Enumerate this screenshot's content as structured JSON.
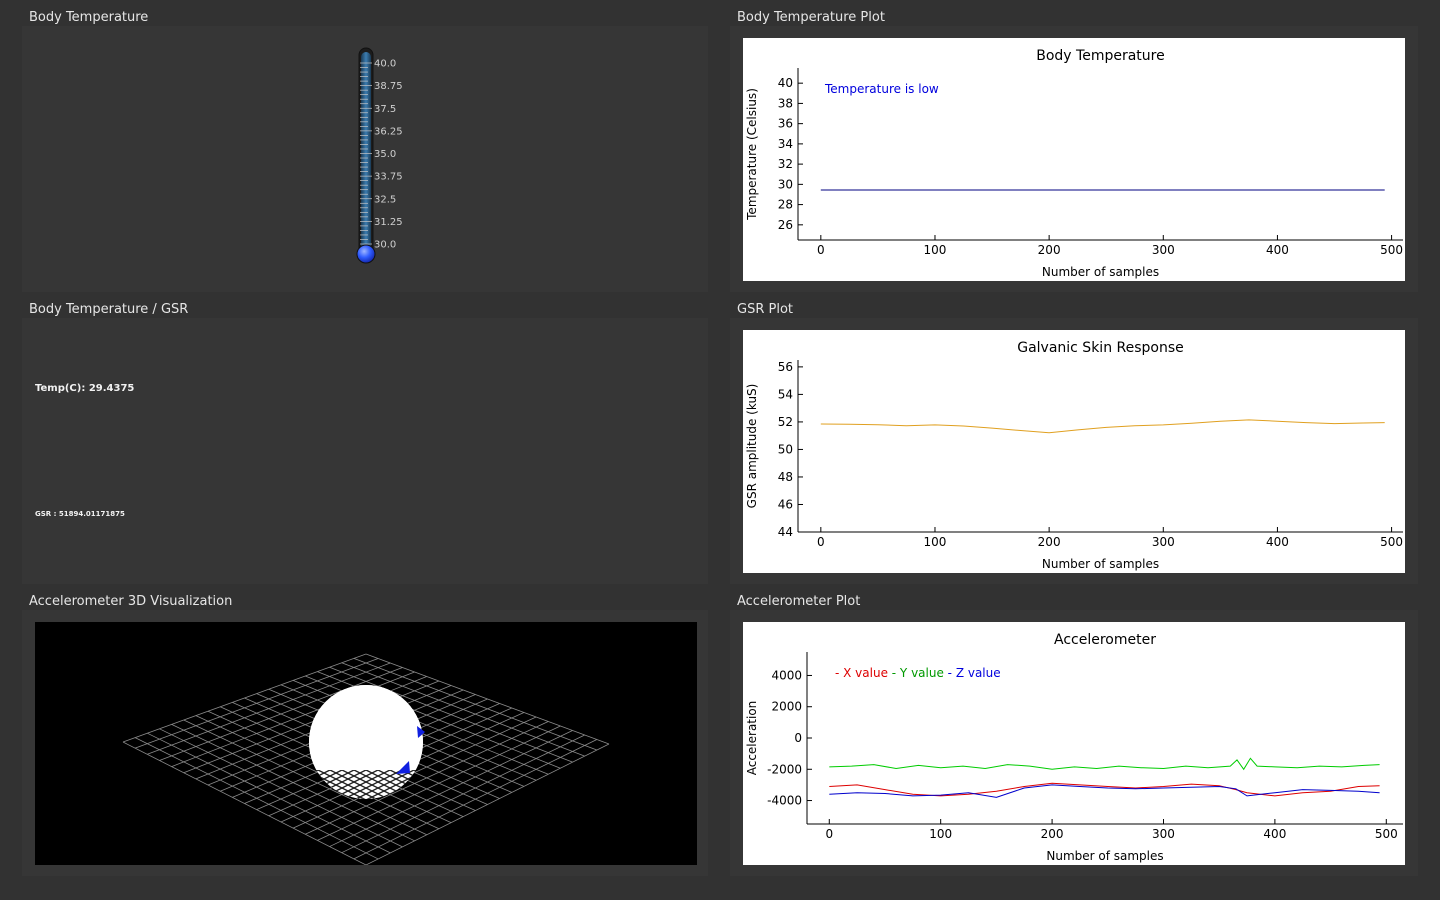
{
  "panels": {
    "body_temp": {
      "title": "Body Temperature"
    },
    "body_temp_plot": {
      "title": "Body Temperature Plot"
    },
    "temp_gsr": {
      "title": "Body Temperature / GSR"
    },
    "gsr_plot": {
      "title": "GSR Plot"
    },
    "accel_3d": {
      "title": "Accelerometer 3D Visualization"
    },
    "accel_plot": {
      "title": "Accelerometer Plot"
    }
  },
  "thermometer": {
    "ticks": [
      "40.0",
      "38.75",
      "37.5",
      "36.25",
      "35.0",
      "33.75",
      "32.5",
      "31.25",
      "30.0"
    ],
    "min": 30.0,
    "max": 40.0,
    "value": 29.4375,
    "colors": {
      "tube": "#2a5f8a",
      "bulb": "#2f5cff",
      "frame": "#1c1c1c"
    }
  },
  "readouts": {
    "temp": "Temp(C): 29.4375",
    "gsr": "GSR : 51894.01171875"
  },
  "chart_data": [
    {
      "type": "line",
      "title": "Body Temperature",
      "xlabel": "Number of samples",
      "ylabel": "Temperature (Celsius)",
      "annotation": "Temperature is low",
      "annotation_color": "#0000dd",
      "xlim": [
        -20,
        510
      ],
      "ylim": [
        24.5,
        41.5
      ],
      "xticks": [
        "0",
        "100",
        "200",
        "300",
        "400",
        "500"
      ],
      "yticks": [
        "26",
        "28",
        "30",
        "32",
        "34",
        "36",
        "38",
        "40"
      ],
      "series": [
        {
          "color": "#000080",
          "x": [
            0,
            494
          ],
          "y": [
            29.44,
            29.44
          ]
        }
      ]
    },
    {
      "type": "line",
      "title": "Galvanic Skin Response",
      "xlabel": "Number of samples",
      "ylabel": "GSR amplitude (kuS)",
      "xlim": [
        -20,
        510
      ],
      "ylim": [
        44,
        56.5
      ],
      "xticks": [
        "0",
        "100",
        "200",
        "300",
        "400",
        "500"
      ],
      "yticks": [
        "44",
        "46",
        "48",
        "50",
        "52",
        "54",
        "56"
      ],
      "series": [
        {
          "color": "#e0a020",
          "x": [
            0,
            25,
            50,
            75,
            100,
            125,
            150,
            175,
            200,
            225,
            250,
            275,
            300,
            325,
            350,
            375,
            400,
            425,
            450,
            475,
            494
          ],
          "y": [
            51.85,
            51.83,
            51.8,
            51.72,
            51.78,
            51.7,
            51.55,
            51.38,
            51.22,
            51.42,
            51.6,
            51.72,
            51.78,
            51.9,
            52.05,
            52.15,
            52.05,
            51.95,
            51.88,
            51.92,
            51.95
          ]
        }
      ]
    },
    {
      "type": "line",
      "title": "Accelerometer",
      "xlabel": "Number of samples",
      "ylabel": "Acceleration",
      "legend": [
        {
          "label": "X value",
          "color": "#dd0000"
        },
        {
          "label": "Y value",
          "color": "#009900"
        },
        {
          "label": "Z value",
          "color": "#0000dd"
        }
      ],
      "xlim": [
        -20,
        515
      ],
      "ylim": [
        -5500,
        5500
      ],
      "xticks": [
        "0",
        "100",
        "200",
        "300",
        "400",
        "500"
      ],
      "yticks": [
        "-4000",
        "-2000",
        "0",
        "2000",
        "4000"
      ],
      "series": [
        {
          "name": "X value",
          "color": "#dd0000",
          "x": [
            0,
            25,
            50,
            75,
            100,
            125,
            150,
            175,
            200,
            225,
            250,
            275,
            300,
            325,
            350,
            365,
            375,
            400,
            425,
            450,
            475,
            494
          ],
          "y": [
            -3100,
            -3000,
            -3300,
            -3600,
            -3700,
            -3600,
            -3400,
            -3100,
            -2900,
            -3000,
            -3100,
            -3200,
            -3100,
            -2950,
            -3050,
            -3300,
            -3500,
            -3700,
            -3500,
            -3400,
            -3100,
            -3050
          ]
        },
        {
          "name": "Y value",
          "color": "#00cc00",
          "x": [
            0,
            20,
            40,
            60,
            80,
            100,
            120,
            140,
            160,
            180,
            200,
            220,
            240,
            260,
            280,
            300,
            320,
            340,
            360,
            366,
            372,
            378,
            384,
            400,
            420,
            440,
            460,
            480,
            494
          ],
          "y": [
            -1850,
            -1800,
            -1700,
            -1950,
            -1750,
            -1900,
            -1800,
            -1950,
            -1700,
            -1800,
            -2000,
            -1850,
            -1950,
            -1800,
            -1900,
            -1950,
            -1800,
            -1900,
            -1800,
            -1400,
            -2000,
            -1300,
            -1800,
            -1850,
            -1900,
            -1800,
            -1850,
            -1750,
            -1700
          ]
        },
        {
          "name": "Z value",
          "color": "#0000cc",
          "x": [
            0,
            25,
            50,
            75,
            100,
            125,
            150,
            175,
            200,
            225,
            250,
            275,
            300,
            325,
            350,
            365,
            375,
            400,
            425,
            450,
            475,
            494
          ],
          "y": [
            -3600,
            -3500,
            -3550,
            -3700,
            -3650,
            -3500,
            -3800,
            -3200,
            -3000,
            -3100,
            -3200,
            -3250,
            -3200,
            -3150,
            -3100,
            -3250,
            -3700,
            -3500,
            -3300,
            -3350,
            -3400,
            -3500
          ]
        }
      ]
    }
  ]
}
